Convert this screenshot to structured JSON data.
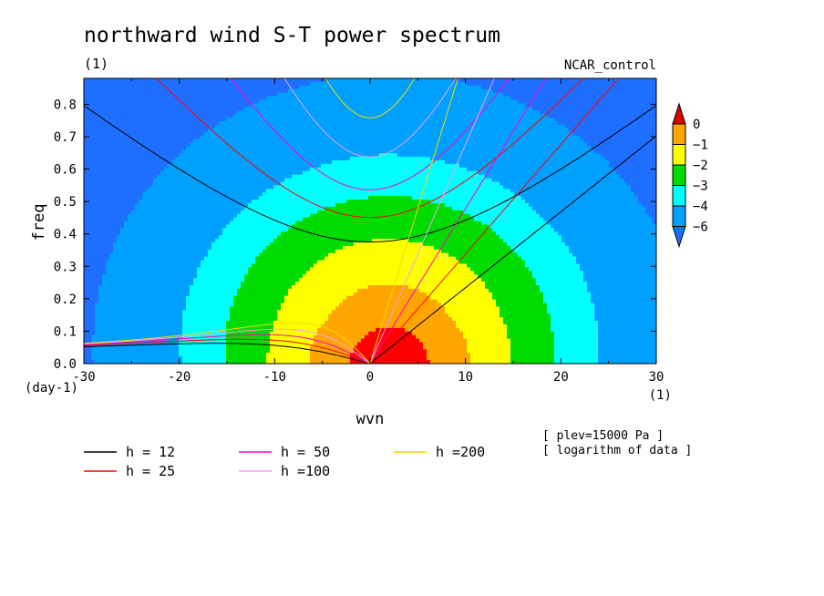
{
  "chart_data": {
    "type": "heatmap",
    "title": "northward wind S-T power spectrum",
    "units_top_left": "(1)",
    "run_label": "NCAR_control",
    "xlabel": "wvn",
    "ylabel": "freq",
    "y_units": "(day-1)",
    "x_units": "(1)",
    "xlim": [
      -30,
      30
    ],
    "ylim": [
      0,
      0.88
    ],
    "x_ticks": [
      -30,
      -20,
      -10,
      0,
      10,
      20,
      30
    ],
    "y_ticks": [
      0.0,
      0.1,
      0.2,
      0.3,
      0.4,
      0.5,
      0.6,
      0.7,
      0.8
    ],
    "colorbar": {
      "levels": [
        -6,
        -4,
        -3,
        -2,
        -1,
        0
      ],
      "tick_labels": [
        "0",
        "−1",
        "−2",
        "−3",
        "−4",
        "−6"
      ],
      "colors": [
        "#1e6eff",
        "#00a0ff",
        "#00ffff",
        "#00dc00",
        "#ffff00",
        "#ffa500",
        "#ff0000",
        "#dc0000"
      ]
    },
    "contour_fill": {
      "colors": [
        "#1e6eff",
        "#00a0ff",
        "#00ffff",
        "#00dc00",
        "#ffff00",
        "#ffa500",
        "#ff0000"
      ],
      "levels": [
        -6,
        -4,
        -3,
        -2,
        -1,
        0
      ]
    },
    "series": [
      {
        "name": "h = 12",
        "color": "#000000",
        "equivalent_depth": 12
      },
      {
        "name": "h = 25",
        "color": "#ff0000",
        "equivalent_depth": 25
      },
      {
        "name": "h = 50",
        "color": "#ff00c8",
        "equivalent_depth": 50
      },
      {
        "name": "h =100",
        "color": "#f0a0f0",
        "equivalent_depth": 100
      },
      {
        "name": "h =200",
        "color": "#f0dc00",
        "equivalent_depth": 200
      }
    ],
    "notes": [
      "[ plev=15000 Pa ]",
      "[ logarithm of data ]"
    ]
  }
}
